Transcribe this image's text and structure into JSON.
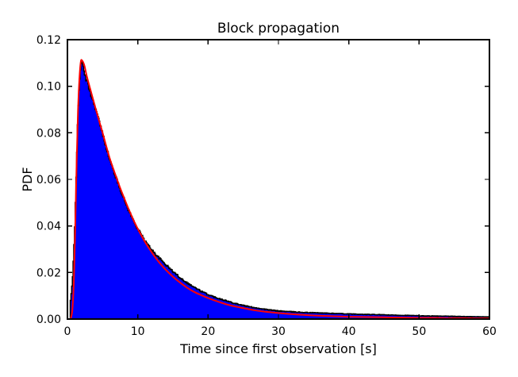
{
  "chart_data": {
    "type": "area",
    "title": "Block propagation",
    "xlabel": "Time since first observation [s]",
    "ylabel": "PDF",
    "xlim": [
      0,
      60
    ],
    "ylim": [
      0,
      0.12
    ],
    "xticks": [
      0,
      10,
      20,
      30,
      40,
      50,
      60
    ],
    "xtick_labels": [
      "0",
      "10",
      "20",
      "30",
      "40",
      "50",
      "60"
    ],
    "yticks": [
      0,
      0.02,
      0.04,
      0.06,
      0.08,
      0.1,
      0.12
    ],
    "ytick_labels": [
      "0.00",
      "0.02",
      "0.04",
      "0.06",
      "0.08",
      "0.10",
      "0.12"
    ],
    "grid": false,
    "legend": "none",
    "background_color": "#ffffff",
    "axis_color": "#000000",
    "series": [
      {
        "name": "histogram",
        "style": "filled-histogram",
        "fill_color": "#0000ff",
        "edge_color": "#000000",
        "edge_width": 1.5,
        "noise_amplitude": 0.0009,
        "x": [
          0.3,
          0.4,
          0.55,
          0.7,
          0.85,
          1.0,
          1.15,
          1.3,
          1.45,
          1.6,
          1.75,
          1.9,
          2.0,
          2.2,
          2.5,
          2.8,
          3.0,
          3.5,
          4.0,
          4.5,
          5.0,
          5.5,
          6.0,
          6.5,
          7.0,
          7.5,
          8.0,
          8.5,
          9.0,
          9.5,
          10.0,
          11.0,
          12.0,
          13.0,
          14.0,
          15.0,
          16.0,
          17.0,
          18.0,
          19.0,
          20.0,
          21.0,
          22.0,
          23.0,
          24.0,
          25.0,
          26.0,
          27.0,
          28.0,
          29.0,
          30.0,
          32.0,
          34.0,
          36.0,
          38.0,
          40.0,
          42.0,
          44.0,
          46.0,
          48.0,
          50.0,
          52.0,
          54.0,
          56.0,
          58.0,
          60.0
        ],
        "y": [
          0.0,
          0.008,
          0.012,
          0.018,
          0.028,
          0.04,
          0.056,
          0.072,
          0.088,
          0.098,
          0.106,
          0.1105,
          0.11,
          0.108,
          0.104,
          0.1015,
          0.0995,
          0.0945,
          0.09,
          0.0845,
          0.079,
          0.0735,
          0.068,
          0.0638,
          0.0595,
          0.0555,
          0.0515,
          0.0478,
          0.0445,
          0.0413,
          0.0385,
          0.0335,
          0.0295,
          0.0262,
          0.0232,
          0.0203,
          0.0177,
          0.0155,
          0.0136,
          0.0119,
          0.0104,
          0.0093,
          0.0084,
          0.0074,
          0.0066,
          0.0058,
          0.0052,
          0.0047,
          0.0042,
          0.0038,
          0.0035,
          0.0031,
          0.0028,
          0.0026,
          0.0024,
          0.0022,
          0.002,
          0.0019,
          0.0017,
          0.0016,
          0.0014,
          0.0013,
          0.0012,
          0.0011,
          0.001,
          0.001
        ]
      },
      {
        "name": "fit",
        "style": "line",
        "color": "#ff0000",
        "line_width": 2,
        "x": [
          0.5,
          0.7,
          0.9,
          1.1,
          1.3,
          1.5,
          1.7,
          1.9,
          2.1,
          2.4,
          2.7,
          3.0,
          3.5,
          4.0,
          4.5,
          5.0,
          5.5,
          6.0,
          6.5,
          7.0,
          7.5,
          8.0,
          8.5,
          9.0,
          9.5,
          10.0,
          11.0,
          12.0,
          13.0,
          14.0,
          15.0,
          16.0,
          17.0,
          18.0,
          19.0,
          20.0,
          21.0,
          22.0,
          23.0,
          24.0,
          25.0,
          26.0,
          27.0,
          28.0,
          29.0,
          30.0,
          32.0,
          34.0,
          36.0,
          38.0,
          40.0,
          42.0,
          44.0,
          46.0,
          48.0,
          50.0,
          52.0,
          54.0,
          56.0,
          58.0,
          60.0
        ],
        "y": [
          0.0005,
          0.004,
          0.015,
          0.038,
          0.066,
          0.089,
          0.103,
          0.1105,
          0.111,
          0.109,
          0.105,
          0.1015,
          0.096,
          0.0905,
          0.0852,
          0.08,
          0.0745,
          0.0692,
          0.0647,
          0.0605,
          0.0563,
          0.0525,
          0.0487,
          0.0452,
          0.0418,
          0.0388,
          0.0333,
          0.0286,
          0.0245,
          0.0211,
          0.0182,
          0.0157,
          0.0135,
          0.0117,
          0.0103,
          0.009,
          0.0079,
          0.0069,
          0.006,
          0.0053,
          0.0047,
          0.0041,
          0.0036,
          0.0032,
          0.0029,
          0.0026,
          0.0021,
          0.0017,
          0.0014,
          0.0012,
          0.001,
          0.0009,
          0.0008,
          0.0007,
          0.0006,
          0.0005,
          0.0005,
          0.0004,
          0.0004,
          0.0003,
          0.0003
        ]
      }
    ]
  }
}
